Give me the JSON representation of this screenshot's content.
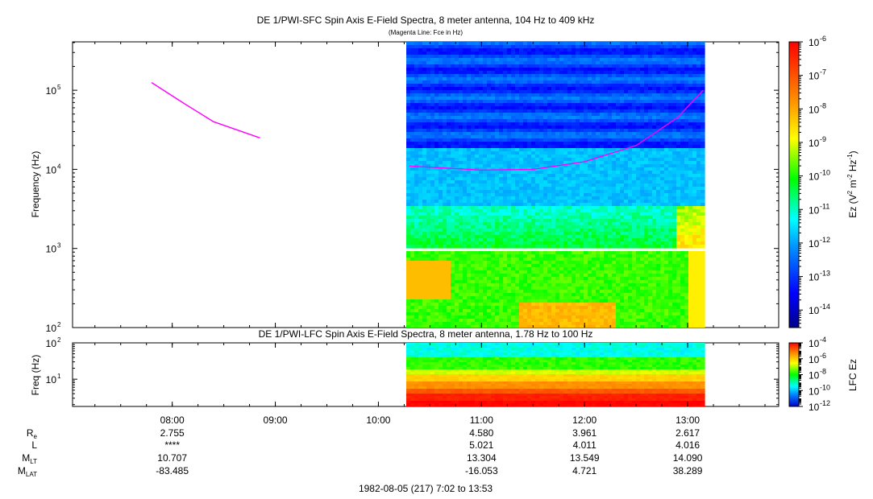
{
  "chart_data": [
    {
      "type": "heatmap",
      "title": "DE 1/PWI-SFC  Spin Axis E-Field Spectra, 8 meter antenna, 104 Hz to 409 kHz",
      "subtitle": "(Magenta Line: Fce in Hz)",
      "ylabel": "Frequency (Hz)",
      "yscale": "log",
      "ylim": [
        100,
        409000
      ],
      "yticks": [
        {
          "value": 100,
          "base": "10",
          "exp": "2"
        },
        {
          "value": 1000,
          "base": "10",
          "exp": "3"
        },
        {
          "value": 10000,
          "base": "10",
          "exp": "4"
        },
        {
          "value": 100000,
          "base": "10",
          "exp": "5"
        }
      ],
      "xlim_hours": [
        7.033,
        13.883
      ],
      "data_start_hours": 10.27,
      "data_end_hours": 13.15,
      "gap_hz": [
        910,
        1000
      ],
      "fce_line": {
        "color": "#ff00ff",
        "segments": [
          [
            [
              7.8,
              125000
            ],
            [
              8.1,
              70000
            ],
            [
              8.4,
              40000
            ],
            [
              8.85,
              25000
            ]
          ],
          [
            [
              10.3,
              11000
            ],
            [
              11.0,
              9800
            ],
            [
              11.5,
              10000
            ],
            [
              12.0,
              12500
            ],
            [
              12.5,
              20000
            ],
            [
              12.9,
              45000
            ],
            [
              13.15,
              100000
            ]
          ]
        ]
      },
      "colorbar": {
        "label_prefix": "Ez (V",
        "label_sup1": "2",
        "label_mid": " m",
        "label_sup2": "-2",
        "label_mid2": " Hz",
        "label_sup3": "-1",
        "label_suffix": ")",
        "scale": "log",
        "range": [
          3e-15,
          1e-06
        ],
        "ticks": [
          {
            "value": 1e-06,
            "base": "10",
            "exp": "-6"
          },
          {
            "value": 1e-07,
            "base": "10",
            "exp": "-7"
          },
          {
            "value": 1e-08,
            "base": "10",
            "exp": "-8"
          },
          {
            "value": 1e-09,
            "base": "10",
            "exp": "-9"
          },
          {
            "value": 1e-10,
            "base": "10",
            "exp": "-10"
          },
          {
            "value": 1e-11,
            "base": "10",
            "exp": "-11"
          },
          {
            "value": 1e-12,
            "base": "10",
            "exp": "-12"
          },
          {
            "value": 1e-13,
            "base": "10",
            "exp": "-13"
          },
          {
            "value": 1e-14,
            "base": "10",
            "exp": "-14"
          }
        ]
      }
    },
    {
      "type": "heatmap",
      "title": "DE 1/PWI-LFC  Spin Axis E-Field Spectra, 8 meter antenna, 1.78 Hz to 100 Hz",
      "ylabel": "Freq (Hz)",
      "yscale": "log",
      "ylim": [
        1.78,
        100
      ],
      "yticks": [
        {
          "value": 10,
          "base": "10",
          "exp": "1"
        },
        {
          "value": 100,
          "base": "10",
          "exp": "2"
        }
      ],
      "colorbar": {
        "label": "LFC Ez",
        "scale": "log",
        "range": [
          1e-12,
          0.0001
        ],
        "ticks": [
          {
            "value": 0.0001,
            "base": "10",
            "exp": "-4"
          },
          {
            "value": 1e-06,
            "base": "10",
            "exp": "-6"
          },
          {
            "value": 1e-08,
            "base": "10",
            "exp": "-8"
          },
          {
            "value": 1e-10,
            "base": "10",
            "exp": "-10"
          },
          {
            "value": 1e-12,
            "base": "10",
            "exp": "-12"
          }
        ]
      }
    }
  ],
  "time_axis": {
    "ticks": [
      {
        "hour": 8,
        "label": "08:00",
        "Re": "2.755",
        "L": "****",
        "MLT": "10.707",
        "MLAT": "-83.485"
      },
      {
        "hour": 9,
        "label": "09:00",
        "Re": "",
        "L": "",
        "MLT": "",
        "MLAT": ""
      },
      {
        "hour": 10,
        "label": "10:00",
        "Re": "",
        "L": "",
        "MLT": "",
        "MLAT": ""
      },
      {
        "hour": 11,
        "label": "11:00",
        "Re": "4.580",
        "L": "5.021",
        "MLT": "13.304",
        "MLAT": "-16.053"
      },
      {
        "hour": 12,
        "label": "12:00",
        "Re": "3.961",
        "L": "4.011",
        "MLT": "13.549",
        "MLAT": "4.721"
      },
      {
        "hour": 13,
        "label": "13:00",
        "Re": "2.617",
        "L": "4.016",
        "MLT": "14.090",
        "MLAT": "38.289"
      }
    ],
    "row_labels": {
      "Re": {
        "main": "R",
        "sub": "e"
      },
      "L": {
        "main": "L",
        "sub": ""
      },
      "MLT": {
        "main": "M",
        "sub": "LT"
      },
      "MLAT": {
        "main": "M",
        "sub": "LAT"
      }
    },
    "footer": "1982-08-05 (217) 7:02 to 13:53"
  }
}
